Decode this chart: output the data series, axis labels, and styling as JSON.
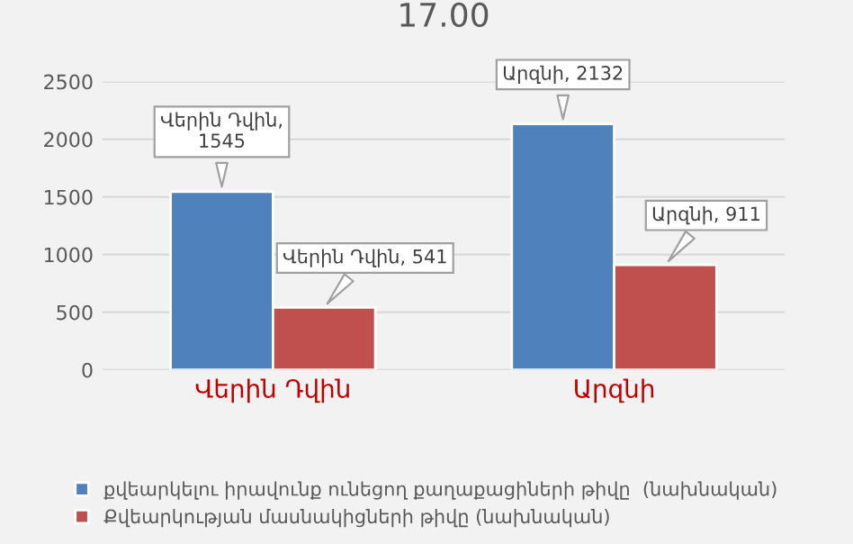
{
  "chart_data": {
    "type": "bar",
    "title": "17.00",
    "categories": [
      "Վերին Դվին",
      "Արզնի"
    ],
    "series": [
      {
        "name": "քվեարկելու իրավունք ունեցող քաղաքացիների թիվը  (նախնական)",
        "color": "#4f81bd",
        "values": [
          1545,
          2132
        ],
        "value_labels": [
          "Վերին Դվին,\n1545",
          "Արզնի, 2132"
        ]
      },
      {
        "name": "Քվեարկության մասնակիցների թիվը (նախնական)",
        "color": "#c0504d",
        "values": [
          541,
          911
        ],
        "value_labels": [
          "Վերին Դվին, 541",
          "Արզնի, 911"
        ]
      }
    ],
    "ylim": [
      0,
      2500
    ],
    "yticks": [
      0,
      500,
      1000,
      1500,
      2000,
      2500
    ],
    "grid": "y",
    "legend": "bottom"
  }
}
